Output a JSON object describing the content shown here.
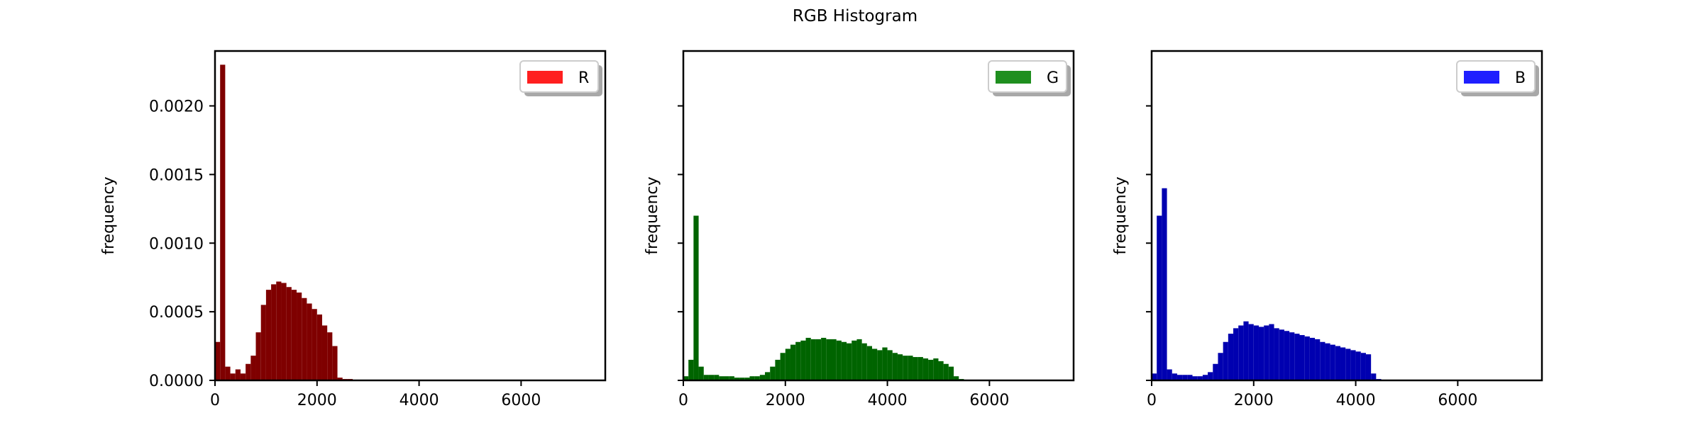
{
  "figure": {
    "title": "RGB Histogram"
  },
  "chart_data": [
    {
      "type": "bar",
      "series_name": "R",
      "color": "#ff0000",
      "bar_color": "#7f0000",
      "ylabel": "frequency",
      "xlim": [
        0,
        7650
      ],
      "ylim": [
        0,
        0.0024
      ],
      "xticks": [
        0,
        2000,
        4000,
        6000
      ],
      "xtick_labels": [
        "0",
        "2000",
        "4000",
        "6000"
      ],
      "yticks": [
        0,
        0.0005,
        0.001,
        0.0015,
        0.002
      ],
      "ytick_labels": [
        "0.0000",
        "0.0005",
        "0.0010",
        "0.0015",
        "0.0020"
      ],
      "legend": "top-right",
      "x": [
        0,
        100,
        200,
        300,
        400,
        500,
        600,
        700,
        800,
        900,
        1000,
        1100,
        1200,
        1300,
        1400,
        1500,
        1600,
        1700,
        1800,
        1900,
        2000,
        2100,
        2200,
        2300,
        2400,
        2500,
        2600,
        2700
      ],
      "values": [
        0.00028,
        0.0023,
        0.0001,
        5e-05,
        8e-05,
        5e-05,
        0.00012,
        0.00018,
        0.00035,
        0.00055,
        0.00066,
        0.0007,
        0.00072,
        0.00071,
        0.00068,
        0.00066,
        0.00064,
        0.0006,
        0.00056,
        0.00052,
        0.00048,
        0.0004,
        0.00035,
        0.00025,
        2e-05,
        1e-05,
        1e-05,
        0.0
      ]
    },
    {
      "type": "bar",
      "series_name": "G",
      "color": "#008000",
      "bar_color": "#006400",
      "ylabel": "frequency",
      "xlim": [
        0,
        7650
      ],
      "ylim": [
        0,
        0.0024
      ],
      "xticks": [
        0,
        2000,
        4000,
        6000
      ],
      "xtick_labels": [
        "0",
        "2000",
        "4000",
        "6000"
      ],
      "yticks": [
        0,
        0.0005,
        0.001,
        0.0015,
        0.002
      ],
      "ytick_labels": [
        "",
        "",
        "",
        "",
        ""
      ],
      "legend": "top-right",
      "x": [
        0,
        100,
        200,
        300,
        400,
        500,
        600,
        700,
        800,
        900,
        1000,
        1100,
        1200,
        1300,
        1400,
        1500,
        1600,
        1700,
        1800,
        1900,
        2000,
        2100,
        2200,
        2300,
        2400,
        2500,
        2600,
        2700,
        2800,
        2900,
        3000,
        3100,
        3200,
        3300,
        3400,
        3500,
        3600,
        3700,
        3800,
        3900,
        4000,
        4100,
        4200,
        4300,
        4400,
        4500,
        4600,
        4700,
        4800,
        4900,
        5000,
        5100,
        5200,
        5300,
        5400
      ],
      "values": [
        3e-05,
        0.00015,
        0.0012,
        0.0001,
        4e-05,
        4e-05,
        4e-05,
        3e-05,
        3e-05,
        3e-05,
        2e-05,
        2e-05,
        2e-05,
        3e-05,
        3e-05,
        4e-05,
        6e-05,
        0.0001,
        0.00015,
        0.0002,
        0.00023,
        0.00026,
        0.00028,
        0.00029,
        0.00031,
        0.0003,
        0.0003,
        0.00031,
        0.0003,
        0.0003,
        0.00029,
        0.00028,
        0.00027,
        0.00029,
        0.0003,
        0.00027,
        0.00025,
        0.00023,
        0.00022,
        0.00024,
        0.00022,
        0.0002,
        0.00019,
        0.00018,
        0.00018,
        0.00017,
        0.00017,
        0.00016,
        0.00015,
        0.00016,
        0.00014,
        0.00012,
        0.0001,
        3e-05,
        1e-05
      ]
    },
    {
      "type": "bar",
      "series_name": "B",
      "color": "#0000ff",
      "bar_color": "#0000b0",
      "ylabel": "frequency",
      "xlim": [
        0,
        7650
      ],
      "ylim": [
        0,
        0.0024
      ],
      "xticks": [
        0,
        2000,
        4000,
        6000
      ],
      "xtick_labels": [
        "0",
        "2000",
        "4000",
        "6000"
      ],
      "yticks": [
        0,
        0.0005,
        0.001,
        0.0015,
        0.002
      ],
      "ytick_labels": [
        "",
        "",
        "",
        "",
        ""
      ],
      "legend": "top-right",
      "x": [
        0,
        100,
        200,
        300,
        400,
        500,
        600,
        700,
        800,
        900,
        1000,
        1100,
        1200,
        1300,
        1400,
        1500,
        1600,
        1700,
        1800,
        1900,
        2000,
        2100,
        2200,
        2300,
        2400,
        2500,
        2600,
        2700,
        2800,
        2900,
        3000,
        3100,
        3200,
        3300,
        3400,
        3500,
        3600,
        3700,
        3800,
        3900,
        4000,
        4100,
        4200,
        4300,
        4400
      ],
      "values": [
        5e-05,
        0.0012,
        0.0014,
        8e-05,
        5e-05,
        4e-05,
        4e-05,
        4e-05,
        3e-05,
        3e-05,
        4e-05,
        6e-05,
        0.00012,
        0.0002,
        0.00028,
        0.00034,
        0.00038,
        0.0004,
        0.00043,
        0.00041,
        0.0004,
        0.00039,
        0.0004,
        0.00041,
        0.00038,
        0.00037,
        0.00036,
        0.00035,
        0.00034,
        0.00033,
        0.00032,
        0.00031,
        0.0003,
        0.00028,
        0.00027,
        0.00026,
        0.00025,
        0.00024,
        0.00023,
        0.00022,
        0.00021,
        0.0002,
        0.00019,
        5e-05,
        1e-05
      ]
    }
  ]
}
